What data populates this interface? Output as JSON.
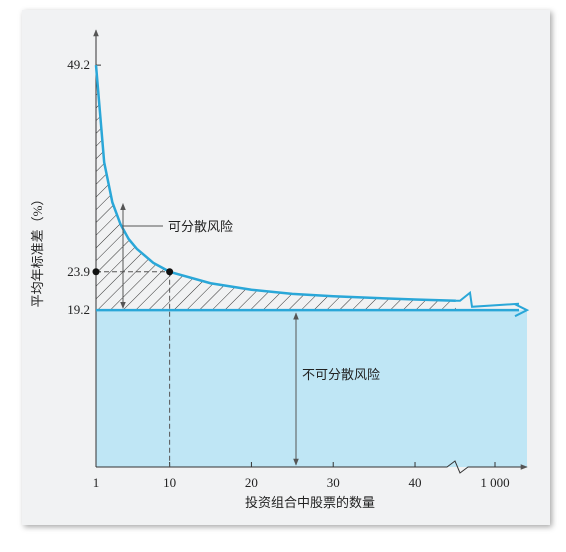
{
  "chart_data": {
    "type": "line",
    "y_label": "平均年标准差（%）",
    "x_label": "投资组合中股票的数量",
    "annotations": [
      "可分散风险",
      "不可分散风险"
    ],
    "x": [
      1,
      2,
      3,
      4,
      5,
      6,
      8,
      10,
      15,
      20,
      25,
      30,
      40,
      45
    ],
    "series": [
      {
        "color": "#2aa7d8",
        "values": [
          49.2,
          37.3,
          32.4,
          29.7,
          27.9,
          26.7,
          25.0,
          23.9,
          22.5,
          21.7,
          21.2,
          20.9,
          20.5,
          20.35
        ]
      }
    ],
    "xlim": [
      1,
      1000
    ],
    "xticks": [
      1,
      10,
      20,
      30,
      40,
      {
        "value": 1000,
        "label": "1 000"
      }
    ],
    "ylim": [
      0,
      53.5
    ],
    "yticks": [
      19.2,
      23.9,
      49.2
    ],
    "fill_color": "#bfe6f5"
  }
}
